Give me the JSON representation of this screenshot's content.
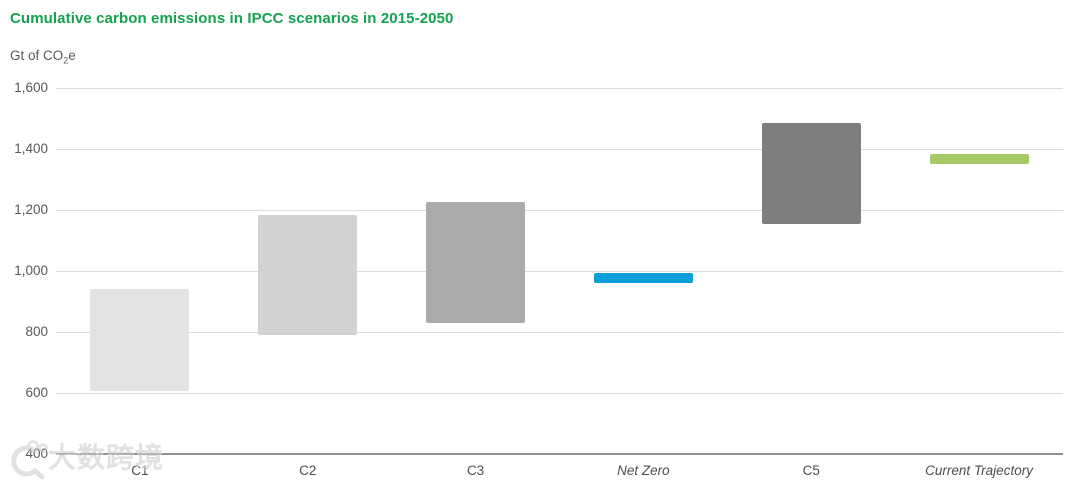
{
  "title": "Cumulative carbon emissions in IPCC scenarios in 2015-2050",
  "subtitle": {
    "prefix": "Gt of CO",
    "sub": "2",
    "suffix": "e"
  },
  "watermark": {
    "text": "大数跨境"
  },
  "colors": {
    "title_green": "#13a24f",
    "axis_text": "#58595b",
    "gridline": "#dcdcdc",
    "baseline": "#8f8f8f"
  },
  "chart_data": {
    "type": "bar",
    "subtype": "floating-range-columns",
    "title": "Cumulative carbon emissions in IPCC scenarios in 2015-2050",
    "ylabel": "Gt of CO2e",
    "xlabel": "",
    "ylim": [
      400,
      1600
    ],
    "grid": "horizontal",
    "legend": "none",
    "yticks": [
      {
        "value": 1600,
        "label": "1,600"
      },
      {
        "value": 1400,
        "label": "1,400"
      },
      {
        "value": 1200,
        "label": "1,200"
      },
      {
        "value": 1000,
        "label": "1,000"
      },
      {
        "value": 800,
        "label": "800"
      },
      {
        "value": 600,
        "label": "600"
      },
      {
        "value": 400,
        "label": "400"
      }
    ],
    "categories": [
      "C1",
      "C2",
      "C3",
      "Net Zero",
      "C5",
      "Current Trajectory"
    ],
    "bars": [
      {
        "label": "C1",
        "low": 605,
        "high": 940,
        "color": "#e3e3e3",
        "italic": false
      },
      {
        "label": "C2",
        "low": 790,
        "high": 1185,
        "color": "#d2d2d2",
        "italic": false
      },
      {
        "label": "C3",
        "low": 830,
        "high": 1225,
        "color": "#ababab",
        "italic": false
      },
      {
        "label": "Net Zero",
        "low": 960,
        "high": 995,
        "color": "#0c9ed9",
        "italic": true
      },
      {
        "label": "C5",
        "low": 1155,
        "high": 1485,
        "color": "#7e7e7e",
        "italic": false
      },
      {
        "label": "Current Trajectory",
        "low": 1350,
        "high": 1385,
        "color": "#a5c964",
        "italic": true
      }
    ]
  }
}
